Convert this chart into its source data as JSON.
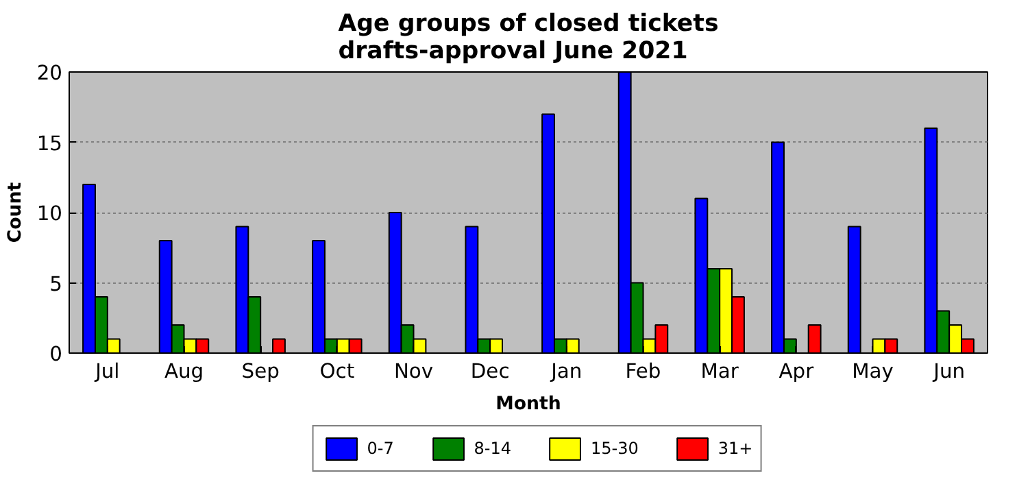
{
  "chart_data": {
    "type": "bar",
    "title": "Age groups of closed tickets\ndrafts-approval June 2021",
    "xlabel": "Month",
    "ylabel": "Count",
    "categories": [
      "Jul",
      "Aug",
      "Sep",
      "Oct",
      "Nov",
      "Dec",
      "Jan",
      "Feb",
      "Mar",
      "Apr",
      "May",
      "Jun"
    ],
    "series": [
      {
        "name": "0-7",
        "color": "#0000ff",
        "values": [
          12,
          8,
          9,
          8,
          10,
          9,
          17,
          20,
          11,
          15,
          9,
          16
        ]
      },
      {
        "name": "8-14",
        "color": "#008000",
        "values": [
          4,
          2,
          4,
          1,
          2,
          1,
          1,
          5,
          6,
          1,
          0,
          3
        ]
      },
      {
        "name": "15-30",
        "color": "#ffff00",
        "values": [
          1,
          1,
          0,
          1,
          1,
          1,
          1,
          1,
          6,
          0,
          1,
          2
        ]
      },
      {
        "name": "31+",
        "color": "#ff0000",
        "values": [
          0,
          1,
          1,
          1,
          0,
          0,
          0,
          2,
          4,
          2,
          1,
          1
        ]
      }
    ],
    "ylim": [
      0,
      20
    ],
    "yticks": [
      0,
      5,
      10,
      15,
      20
    ],
    "grid": "y",
    "legend": "bottom"
  }
}
